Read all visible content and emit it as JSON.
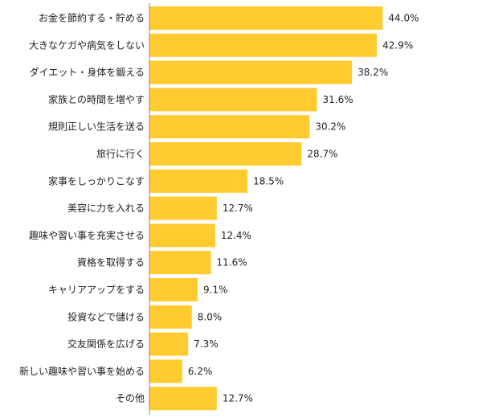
{
  "chart_data": {
    "type": "bar",
    "orientation": "horizontal",
    "categories": [
      "お金を節約する・貯める",
      "大きなケガや病気をしない",
      "ダイエット・身体を鍛える",
      "家族との時間を増やす",
      "規則正しい生活を送る",
      "旅行に行く",
      "家事をしっかりこなす",
      "美容に力を入れる",
      "趣味や習い事を充実させる",
      "資格を取得する",
      "キャリアアップをする",
      "投資などで儲ける",
      "交友関係を広げる",
      "新しい趣味や習い事を始める",
      "その他"
    ],
    "values": [
      44.0,
      42.9,
      38.2,
      31.6,
      30.2,
      28.7,
      18.5,
      12.7,
      12.4,
      11.6,
      9.1,
      8.0,
      7.3,
      6.2,
      12.7
    ],
    "value_labels": [
      "44.0%",
      "42.9%",
      "38.2%",
      "31.6%",
      "30.2%",
      "28.7%",
      "18.5%",
      "12.7%",
      "12.4%",
      "11.6%",
      "9.1%",
      "8.0%",
      "7.3%",
      "6.2%",
      "12.7%"
    ],
    "unit": "%",
    "xlim": [
      0,
      50
    ],
    "grid": false,
    "legend": "none",
    "bar_color": "#FFCB2F",
    "title": "",
    "xlabel": "",
    "ylabel": ""
  }
}
